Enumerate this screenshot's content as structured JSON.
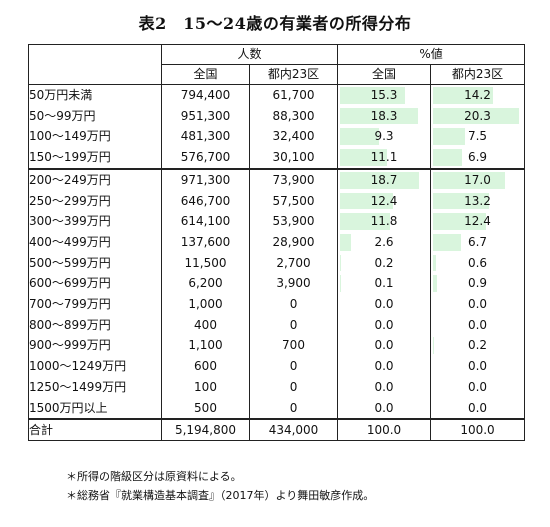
{
  "title": "表2　15～24歳の有業者の所得分布",
  "headers": {
    "group_count": "人数",
    "group_pct": "%値",
    "col_nation": "全国",
    "col_tokyo": "都内23区",
    "col_nation_pct": "全国",
    "col_tokyo_pct": "都内23区"
  },
  "rows": [
    {
      "label": "50万円未満",
      "nation": "794,400",
      "tokyo": "61,700",
      "nation_pct": "15.3",
      "tokyo_pct": "14.2",
      "nation_frac": 15.3,
      "tokyo_frac": 14.2
    },
    {
      "label": "50～99万円",
      "nation": "951,300",
      "tokyo": "88,300",
      "nation_pct": "18.3",
      "tokyo_pct": "20.3",
      "nation_frac": 18.3,
      "tokyo_frac": 20.3
    },
    {
      "label": "100～149万円",
      "nation": "481,300",
      "tokyo": "32,400",
      "nation_pct": "9.3",
      "tokyo_pct": "7.5",
      "nation_frac": 9.3,
      "tokyo_frac": 7.5
    },
    {
      "label": "150～199万円",
      "nation": "576,700",
      "tokyo": "30,100",
      "nation_pct": "11.1",
      "tokyo_pct": "6.9",
      "nation_frac": 11.1,
      "tokyo_frac": 6.9
    },
    {
      "label": "200～249万円",
      "nation": "971,300",
      "tokyo": "73,900",
      "nation_pct": "18.7",
      "tokyo_pct": "17.0",
      "nation_frac": 18.7,
      "tokyo_frac": 17.0
    },
    {
      "label": "250～299万円",
      "nation": "646,700",
      "tokyo": "57,500",
      "nation_pct": "12.4",
      "tokyo_pct": "13.2",
      "nation_frac": 12.4,
      "tokyo_frac": 13.2
    },
    {
      "label": "300～399万円",
      "nation": "614,100",
      "tokyo": "53,900",
      "nation_pct": "11.8",
      "tokyo_pct": "12.4",
      "nation_frac": 11.8,
      "tokyo_frac": 12.4
    },
    {
      "label": "400～499万円",
      "nation": "137,600",
      "tokyo": "28,900",
      "nation_pct": "2.6",
      "tokyo_pct": "6.7",
      "nation_frac": 2.6,
      "tokyo_frac": 6.7
    },
    {
      "label": "500～599万円",
      "nation": "11,500",
      "tokyo": "2,700",
      "nation_pct": "0.2",
      "tokyo_pct": "0.6",
      "nation_frac": 0.2,
      "tokyo_frac": 0.6
    },
    {
      "label": "600～699万円",
      "nation": "6,200",
      "tokyo": "3,900",
      "nation_pct": "0.1",
      "tokyo_pct": "0.9",
      "nation_frac": 0.1,
      "tokyo_frac": 0.9
    },
    {
      "label": "700～799万円",
      "nation": "1,000",
      "tokyo": "0",
      "nation_pct": "0.0",
      "tokyo_pct": "0.0",
      "nation_frac": 0.0,
      "tokyo_frac": 0.0
    },
    {
      "label": "800～899万円",
      "nation": "400",
      "tokyo": "0",
      "nation_pct": "0.0",
      "tokyo_pct": "0.0",
      "nation_frac": 0.0,
      "tokyo_frac": 0.0
    },
    {
      "label": "900～999万円",
      "nation": "1,100",
      "tokyo": "700",
      "nation_pct": "0.0",
      "tokyo_pct": "0.2",
      "nation_frac": 0.0,
      "tokyo_frac": 0.2
    },
    {
      "label": "1000～1249万円",
      "nation": "600",
      "tokyo": "0",
      "nation_pct": "0.0",
      "tokyo_pct": "0.0",
      "nation_frac": 0.0,
      "tokyo_frac": 0.0
    },
    {
      "label": "1250～1499万円",
      "nation": "100",
      "tokyo": "0",
      "nation_pct": "0.0",
      "tokyo_pct": "0.0",
      "nation_frac": 0.0,
      "tokyo_frac": 0.0
    },
    {
      "label": "1500万円以上",
      "nation": "500",
      "tokyo": "0",
      "nation_pct": "0.0",
      "tokyo_pct": "0.0",
      "nation_frac": 0.0,
      "tokyo_frac": 0.0
    }
  ],
  "total": {
    "label": "合計",
    "nation": "5,194,800",
    "tokyo": "434,000",
    "nation_pct": "100.0",
    "tokyo_pct": "100.0"
  },
  "notes": [
    "＊所得の階級区分は原資料による。",
    "＊総務省『就業構造基本調査』（2017年）より舞田敏彦作成。"
  ],
  "colors": {
    "bar": "#d9f5dd"
  }
}
